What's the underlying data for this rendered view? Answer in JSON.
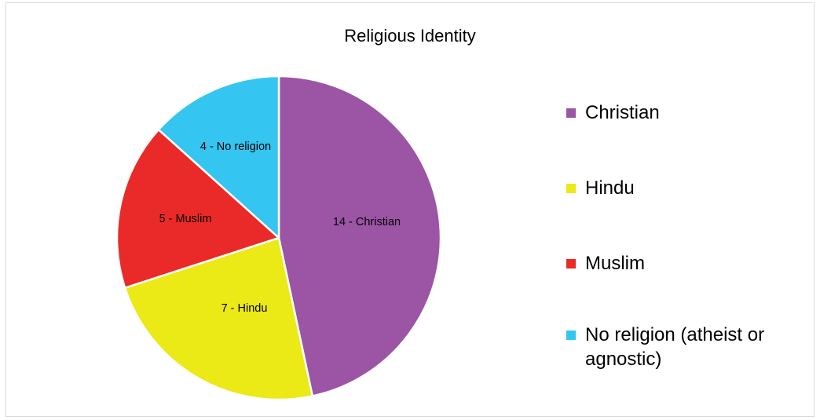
{
  "chart_data": {
    "type": "pie",
    "title": "Religious Identity",
    "slices": [
      {
        "category": "Christian",
        "value": 14,
        "label": "14 - Christian",
        "color": "#9b55a4"
      },
      {
        "category": "Hindu",
        "value": 7,
        "label": "7 - Hindu",
        "color": "#ebe916"
      },
      {
        "category": "Muslim",
        "value": 5,
        "label": "5 - Muslim",
        "color": "#ea2a28"
      },
      {
        "category": "No religion (atheist or agnostic)",
        "value": 4,
        "label": "4 - No religion",
        "color": "#34c5f0"
      }
    ],
    "start_angle_deg": 0,
    "direction": "clockwise",
    "legend_position": "right",
    "legend": [
      {
        "label": "Christian"
      },
      {
        "label": "Hindu"
      },
      {
        "label": "Muslim"
      },
      {
        "label": "No religion (atheist or agnostic)"
      }
    ]
  }
}
